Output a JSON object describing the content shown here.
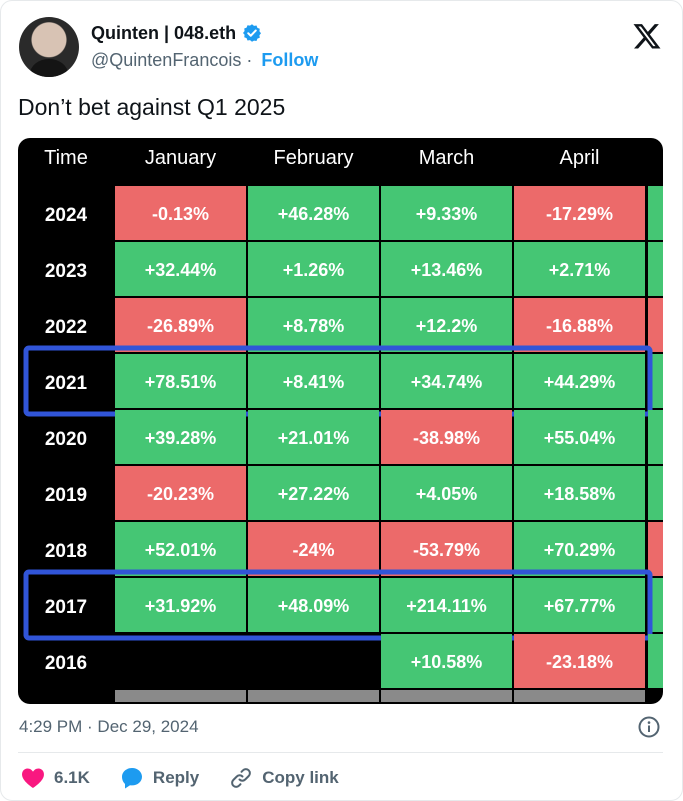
{
  "author": {
    "display_name": "Quinten | 048.eth",
    "handle": "@QuintenFrancois",
    "follow_label": "Follow",
    "separator": "·"
  },
  "tweet": {
    "text": "Don’t bet against Q1 2025",
    "timestamp": "4:29 PM · Dec 29, 2024"
  },
  "actions": {
    "likes": "6.1K",
    "reply_label": "Reply",
    "copy_label": "Copy link"
  },
  "colors": {
    "green": "#45c674",
    "red": "#ec6a6a",
    "highlight": "#3155d8",
    "like": "#f91880",
    "reply": "#1d9bf0"
  },
  "chart_data": {
    "type": "table",
    "columns": [
      "Time",
      "January",
      "February",
      "March",
      "April"
    ],
    "rows": [
      {
        "year": "2024",
        "values": [
          "-0.13%",
          "+46.28%",
          "+9.33%",
          "-17.29%"
        ]
      },
      {
        "year": "2023",
        "values": [
          "+32.44%",
          "+1.26%",
          "+13.46%",
          "+2.71%"
        ]
      },
      {
        "year": "2022",
        "values": [
          "-26.89%",
          "+8.78%",
          "+12.2%",
          "-16.88%"
        ]
      },
      {
        "year": "2021",
        "values": [
          "+78.51%",
          "+8.41%",
          "+34.74%",
          "+44.29%"
        ]
      },
      {
        "year": "2020",
        "values": [
          "+39.28%",
          "+21.01%",
          "-38.98%",
          "+55.04%"
        ]
      },
      {
        "year": "2019",
        "values": [
          "-20.23%",
          "+27.22%",
          "+4.05%",
          "+18.58%"
        ]
      },
      {
        "year": "2018",
        "values": [
          "+52.01%",
          "-24%",
          "-53.79%",
          "+70.29%"
        ]
      },
      {
        "year": "2017",
        "values": [
          "+31.92%",
          "+48.09%",
          "+214.11%",
          "+67.77%"
        ]
      },
      {
        "year": "2016",
        "values": [
          "",
          "",
          "+10.58%",
          "-23.18%"
        ]
      }
    ],
    "highlighted_years": [
      "2021",
      "2017"
    ]
  }
}
